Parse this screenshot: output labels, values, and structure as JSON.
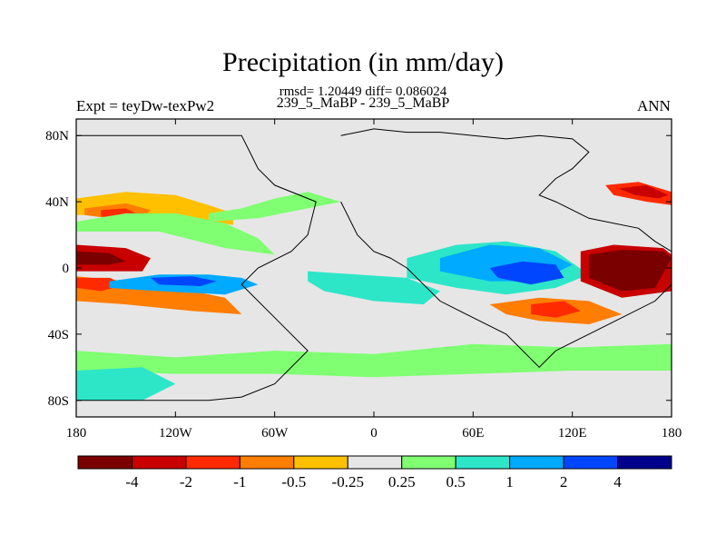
{
  "title": "Precipitation (in mm/day)",
  "stats_line": "rmsd= 1.20449  diff= 0.086024",
  "subtitle": "239_5_MaBP - 239_5_MaBP",
  "left_string": "Expt = teyDw-texPw2",
  "right_string": "ANN",
  "chart_data": {
    "type": "heatmap",
    "title": "Precipitation (in mm/day)",
    "xlabel": "",
    "ylabel": "",
    "xlim": [
      -180,
      180
    ],
    "ylim": [
      -90,
      90
    ],
    "x_ticks": [
      {
        "value": -180,
        "label": "180"
      },
      {
        "value": -120,
        "label": "120W"
      },
      {
        "value": -60,
        "label": "60W"
      },
      {
        "value": 0,
        "label": "0"
      },
      {
        "value": 60,
        "label": "60E"
      },
      {
        "value": 120,
        "label": "120E"
      },
      {
        "value": 180,
        "label": "180"
      }
    ],
    "y_ticks": [
      {
        "value": 80,
        "label": "80N"
      },
      {
        "value": 40,
        "label": "40N"
      },
      {
        "value": 0,
        "label": "0"
      },
      {
        "value": -40,
        "label": "40S"
      },
      {
        "value": -80,
        "label": "80S"
      }
    ],
    "levels": [
      "-4",
      "-2",
      "-1",
      "-0.5",
      "-0.25",
      "0.25",
      "0.5",
      "1",
      "2",
      "4"
    ],
    "colorbar": [
      "#7a0000",
      "#c80000",
      "#ff2a00",
      "#ff7d00",
      "#ffc000",
      "#e6e6e6",
      "#80ff73",
      "#2de6c8",
      "#00aaff",
      "#0046ff",
      "#00008c"
    ],
    "colors": {
      "background_zero": "#e6e6e6",
      "coastline": "#000000"
    },
    "fields": [
      {
        "name": "north-pacific-band",
        "level_index": 4,
        "lon": [
          -180,
          -150,
          -120,
          -100,
          -85,
          -85,
          -100,
          -130,
          -160,
          -180
        ],
        "lat": [
          42,
          46,
          44,
          38,
          33,
          26,
          28,
          30,
          32,
          32
        ]
      },
      {
        "name": "north-pacific-core",
        "level_index": 3,
        "lon": [
          -175,
          -150,
          -135,
          -140,
          -160,
          -175
        ],
        "lat": [
          36,
          39,
          35,
          30,
          30,
          32
        ]
      },
      {
        "name": "north-pacific-red",
        "level_index": 2,
        "lon": [
          -165,
          -150,
          -142,
          -150,
          -165
        ],
        "lat": [
          35,
          36,
          32,
          30,
          31
        ]
      },
      {
        "name": "pacific-itcz-green",
        "level_index": 6,
        "lon": [
          -180,
          -150,
          -120,
          -90,
          -70,
          -60,
          -90,
          -130,
          -180
        ],
        "lat": [
          28,
          33,
          33,
          27,
          18,
          8,
          12,
          22,
          22
        ]
      },
      {
        "name": "north-atlantic-green",
        "level_index": 6,
        "lon": [
          -100,
          -80,
          -60,
          -40,
          -20,
          -40,
          -70,
          -100
        ],
        "lat": [
          33,
          36,
          42,
          46,
          40,
          36,
          30,
          28
        ]
      },
      {
        "name": "equatorial-pacific-red-west",
        "level_index": 1,
        "lon": [
          -180,
          -150,
          -135,
          -140,
          -180
        ],
        "lat": [
          14,
          12,
          6,
          -2,
          -2
        ]
      },
      {
        "name": "equatorial-pacific-core",
        "level_index": 0,
        "lon": [
          -180,
          -160,
          -150,
          -160,
          -180
        ],
        "lat": [
          10,
          9,
          4,
          2,
          2
        ]
      },
      {
        "name": "south-pacific-orange",
        "level_index": 3,
        "lon": [
          -180,
          -150,
          -120,
          -90,
          -80,
          -110,
          -150,
          -180
        ],
        "lat": [
          -5,
          -8,
          -12,
          -18,
          -28,
          -26,
          -22,
          -20
        ]
      },
      {
        "name": "south-pacific-red",
        "level_index": 2,
        "lon": [
          -180,
          -160,
          -150,
          -165,
          -180
        ],
        "lat": [
          -6,
          -6,
          -10,
          -14,
          -12
        ]
      },
      {
        "name": "pacific-blue-band",
        "level_index": 8,
        "lon": [
          -160,
          -130,
          -100,
          -80,
          -70,
          -90,
          -130,
          -160
        ],
        "lat": [
          -8,
          -4,
          -4,
          -6,
          -10,
          -16,
          -14,
          -12
        ]
      },
      {
        "name": "pacific-navy-band",
        "level_index": 9,
        "lon": [
          -135,
          -110,
          -95,
          -105,
          -130
        ],
        "lat": [
          -6,
          -5,
          -8,
          -11,
          -10
        ]
      },
      {
        "name": "south-atlantic-cyan",
        "level_index": 7,
        "lon": [
          -40,
          -10,
          20,
          40,
          30,
          0,
          -30,
          -40
        ],
        "lat": [
          -2,
          -4,
          -6,
          -14,
          -22,
          -20,
          -14,
          -8
        ]
      },
      {
        "name": "indian-ocean-cyan",
        "level_index": 7,
        "lon": [
          20,
          50,
          80,
          110,
          130,
          110,
          80,
          50,
          20
        ],
        "lat": [
          6,
          14,
          16,
          10,
          -4,
          -12,
          -16,
          -12,
          -6
        ]
      },
      {
        "name": "indian-ocean-blue",
        "level_index": 8,
        "lon": [
          40,
          70,
          100,
          120,
          100,
          70,
          40
        ],
        "lat": [
          6,
          14,
          12,
          2,
          -8,
          -8,
          -2
        ]
      },
      {
        "name": "indian-ocean-navy",
        "level_index": 9,
        "lon": [
          70,
          90,
          110,
          115,
          95,
          75
        ],
        "lat": [
          0,
          4,
          2,
          -6,
          -10,
          -6
        ]
      },
      {
        "name": "maritime-red-north",
        "level_index": 1,
        "lon": [
          125,
          145,
          175,
          180,
          180,
          150,
          125
        ],
        "lat": [
          10,
          14,
          12,
          8,
          -14,
          -18,
          -8
        ]
      },
      {
        "name": "maritime-darkred-north",
        "level_index": 0,
        "lon": [
          130,
          150,
          175,
          180,
          170,
          150,
          130
        ],
        "lat": [
          8,
          11,
          10,
          6,
          -12,
          -14,
          -6
        ]
      },
      {
        "name": "north-pacific-west-red",
        "level_index": 2,
        "lon": [
          140,
          160,
          180,
          180,
          165,
          145
        ],
        "lat": [
          50,
          52,
          46,
          38,
          40,
          44
        ]
      },
      {
        "name": "north-pacific-west-core",
        "level_index": 1,
        "lon": [
          148,
          165,
          178,
          172,
          158
        ],
        "lat": [
          48,
          50,
          44,
          42,
          44
        ]
      },
      {
        "name": "south-indian-orange",
        "level_index": 3,
        "lon": [
          70,
          100,
          130,
          150,
          130,
          100,
          80
        ],
        "lat": [
          -22,
          -18,
          -20,
          -28,
          -34,
          -32,
          -28
        ]
      },
      {
        "name": "south-indian-red",
        "level_index": 2,
        "lon": [
          95,
          115,
          125,
          110,
          95
        ],
        "lat": [
          -22,
          -20,
          -26,
          -30,
          -28
        ]
      },
      {
        "name": "southern-green-band",
        "level_index": 6,
        "lon": [
          -180,
          -120,
          -60,
          0,
          60,
          120,
          180,
          180,
          120,
          60,
          0,
          -60,
          -120,
          -180
        ],
        "lat": [
          -50,
          -54,
          -50,
          -52,
          -46,
          -48,
          -46,
          -62,
          -62,
          -64,
          -66,
          -64,
          -64,
          -62
        ]
      },
      {
        "name": "southern-cyan-band",
        "level_index": 7,
        "lon": [
          -180,
          -140,
          -120,
          -140,
          -180
        ],
        "lat": [
          -62,
          -60,
          -70,
          -80,
          -80
        ]
      }
    ],
    "coastlines": [
      {
        "name": "americas-outline",
        "lon": [
          -180,
          -170,
          -150,
          -120,
          -100,
          -80,
          -60,
          -40,
          -60,
          -80,
          -70,
          -50,
          -40,
          -35,
          -60,
          -70,
          -75,
          -80,
          -180
        ],
        "lat": [
          -80,
          -80,
          -80,
          -80,
          -80,
          -78,
          -70,
          -50,
          -30,
          -10,
          0,
          10,
          20,
          40,
          50,
          60,
          70,
          80,
          80
        ]
      },
      {
        "name": "eurasia-africa-outline",
        "lon": [
          -20,
          -10,
          0,
          20,
          40,
          60,
          80,
          100,
          120,
          130,
          120,
          110,
          100,
          110,
          130,
          160,
          170,
          180,
          180,
          170,
          150,
          130,
          110,
          100,
          80,
          60,
          40,
          30,
          20,
          10,
          0,
          -10,
          -20
        ],
        "lat": [
          80,
          82,
          84,
          82,
          82,
          80,
          78,
          80,
          78,
          70,
          60,
          54,
          44,
          40,
          30,
          24,
          16,
          10,
          -10,
          -20,
          -30,
          -40,
          -50,
          -60,
          -40,
          -30,
          -20,
          -10,
          0,
          6,
          10,
          20,
          40
        ]
      }
    ]
  }
}
